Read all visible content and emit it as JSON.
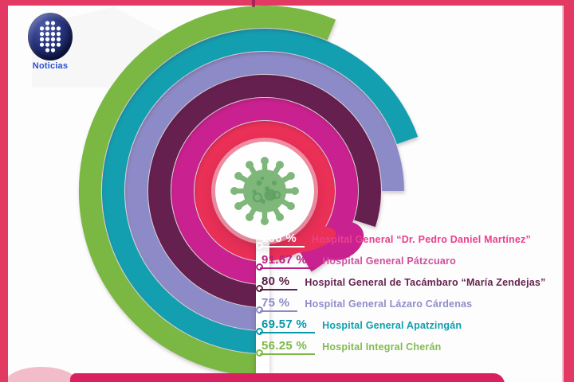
{
  "page": {
    "background": "#fdfdfd",
    "frame_color": "#e23a62",
    "frame_inner_line": "#f5c3d1",
    "bottom_bar_color": "#da2160",
    "bottom_left_blob_color": "#f3bcca"
  },
  "logo": {
    "label": "Noticias",
    "label_color": "#2b50d0",
    "sphere_color": "#1d2a60",
    "dot_color": "#ffffff"
  },
  "chart_data": {
    "type": "radial_progress_rings",
    "description": "Hospital bed occupancy percentages drawn as concentric arcs around a coronavirus icon; innermost ring = first list item",
    "unit": "%",
    "center_icon": "coronavirus-icon",
    "center_icon_color": "#7fb77b",
    "center_icon_detail_color": "#5c9f61",
    "start_angle_deg": 180,
    "direction": "clockwise",
    "items": [
      {
        "label": "Hospital General “Dr. Pedro Daniel Martínez”",
        "value": 100,
        "display": "100 %",
        "ring_color": "#ea3057",
        "pct_color": "#ffffff",
        "label_color": "#e9418c"
      },
      {
        "label": "Hospital General Pátzcuaro",
        "value": 91.67,
        "display": "91.67 %",
        "ring_color": "#ca2190",
        "pct_color": "#b82083",
        "label_color": "#cf4f9d"
      },
      {
        "label": "Hospital General de Tacámbaro “María Zendejas”",
        "value": 80,
        "display": "80 %",
        "ring_color": "#662050",
        "pct_color": "#5d2148",
        "label_color": "#67234f"
      },
      {
        "label": "Hospital General Lázaro Cárdenas",
        "value": 75,
        "display": "75 %",
        "ring_color": "#8d8bc7",
        "pct_color": "#8b89c6",
        "label_color": "#8f8dc9"
      },
      {
        "label": "Hospital General Apatzingán",
        "value": 69.57,
        "display": "69.57 %",
        "ring_color": "#149fb0",
        "pct_color": "#0798aa",
        "label_color": "#0f9fae"
      },
      {
        "label": "Hospital Integral Cherán",
        "value": 56.25,
        "display": "56.25 %",
        "ring_color": "#7ab843",
        "pct_color": "#7db945",
        "label_color": "#82bb4f"
      }
    ]
  }
}
